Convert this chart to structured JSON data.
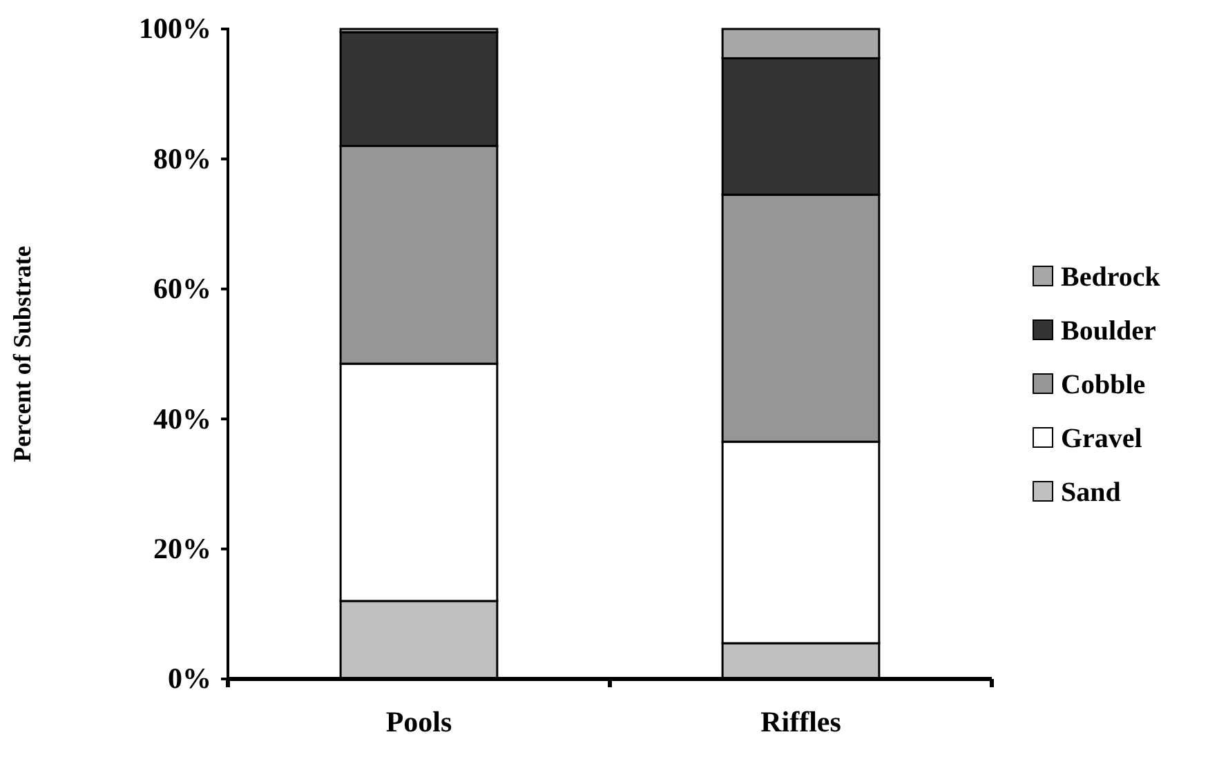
{
  "chart_data": {
    "type": "bar",
    "stacked": true,
    "ylabel": "Percent of Substrate",
    "categories": [
      "Pools",
      "Riffles"
    ],
    "series": [
      {
        "name": "Sand",
        "color": "#c0c0c0",
        "values": [
          12,
          5.5
        ]
      },
      {
        "name": "Gravel",
        "color": "#ffffff",
        "values": [
          36.5,
          31
        ]
      },
      {
        "name": "Cobble",
        "color": "#969696",
        "values": [
          33.5,
          38
        ]
      },
      {
        "name": "Boulder",
        "color": "#333333",
        "values": [
          17.5,
          21
        ]
      },
      {
        "name": "Bedrock",
        "color": "#a8a8a8",
        "values": [
          0.5,
          4.5
        ]
      }
    ],
    "ylim": [
      0,
      100
    ],
    "yticks": [
      {
        "value": 0,
        "label": "0%"
      },
      {
        "value": 20,
        "label": "20%"
      },
      {
        "value": 40,
        "label": "40%"
      },
      {
        "value": 60,
        "label": "60%"
      },
      {
        "value": 80,
        "label": "80%"
      },
      {
        "value": 100,
        "label": "100%"
      }
    ],
    "legend": "right"
  }
}
